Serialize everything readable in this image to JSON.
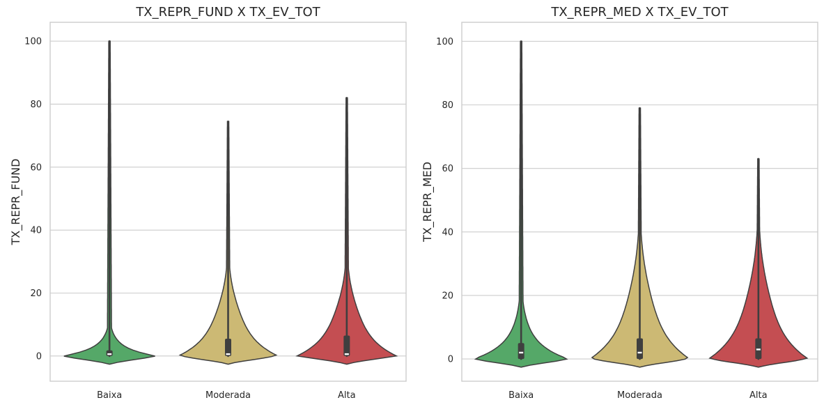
{
  "chart_data": [
    {
      "type": "violin",
      "title": "TX_REPR_FUND X TX_EV_TOT",
      "xlabel": "",
      "ylabel": "TX_REPR_FUND",
      "categories": [
        "Baixa",
        "Moderada",
        "Alta"
      ],
      "colors": [
        "#55a868",
        "#ccb974",
        "#c44e52"
      ],
      "ylim": [
        -8,
        106
      ],
      "yticks": [
        0,
        20,
        40,
        60,
        80,
        100
      ],
      "grid": true,
      "violins": [
        {
          "min": 0,
          "max": 100,
          "q1": 0.0,
          "median": 0.6,
          "q3": 1.8,
          "whisker_low": 0,
          "whisker_high": 3.5
        },
        {
          "min": 0,
          "max": 74.5,
          "q1": 0.0,
          "median": 0.6,
          "q3": 5.5,
          "whisker_low": 0,
          "whisker_high": 13
        },
        {
          "min": 0,
          "max": 82,
          "q1": 0.0,
          "median": 0.6,
          "q3": 6.5,
          "whisker_low": 0,
          "whisker_high": 15
        }
      ]
    },
    {
      "type": "violin",
      "title": "TX_REPR_MED X TX_EV_TOT",
      "xlabel": "",
      "ylabel": "TX_REPR_MED",
      "categories": [
        "Baixa",
        "Moderada",
        "Alta"
      ],
      "colors": [
        "#55a868",
        "#ccb974",
        "#c44e52"
      ],
      "ylim": [
        -7,
        106
      ],
      "yticks": [
        0,
        20,
        40,
        60,
        80,
        100
      ],
      "grid": true,
      "violins": [
        {
          "min": 0,
          "max": 100,
          "q1": 0.0,
          "median": 2.0,
          "q3": 5.0,
          "whisker_low": 0,
          "whisker_high": 11
        },
        {
          "min": 0,
          "max": 79,
          "q1": 0.0,
          "median": 2.0,
          "q3": 6.5,
          "whisker_low": 0,
          "whisker_high": 15
        },
        {
          "min": 0,
          "max": 63,
          "q1": 0.0,
          "median": 3.0,
          "q3": 6.5,
          "whisker_low": 0,
          "whisker_high": 15
        }
      ]
    }
  ]
}
